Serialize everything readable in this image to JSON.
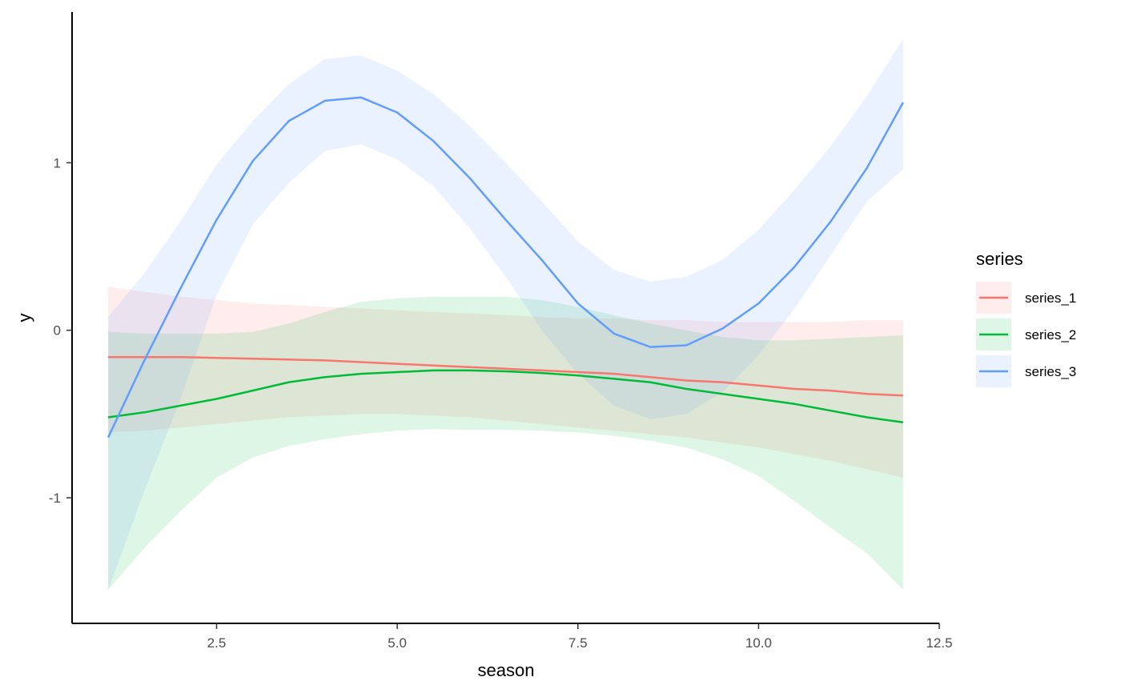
{
  "chart_data": {
    "type": "line",
    "title": "",
    "xlabel": "season",
    "ylabel": "y",
    "xlim": [
      0.5,
      12.5
    ],
    "ylim": [
      -1.75,
      1.9
    ],
    "x_ticks": [
      2.5,
      5.0,
      7.5,
      10.0,
      12.5
    ],
    "x_tick_labels": [
      "2.5",
      "5.0",
      "7.5",
      "10.0",
      "12.5"
    ],
    "y_ticks": [
      1,
      0,
      -1
    ],
    "y_tick_labels": [
      "1",
      "0",
      "-1"
    ],
    "grid": false,
    "legend": {
      "title": "series",
      "position": "right"
    },
    "x": [
      1,
      1.5,
      2,
      2.5,
      3,
      3.5,
      4,
      4.5,
      5,
      5.5,
      6,
      6.5,
      7,
      7.5,
      8,
      8.5,
      9,
      9.5,
      10,
      10.5,
      11,
      11.5,
      12
    ],
    "series": [
      {
        "name": "series_1",
        "color": "#F8766D",
        "fill": "#F8766D",
        "values": [
          -0.16,
          -0.16,
          -0.16,
          -0.165,
          -0.17,
          -0.175,
          -0.18,
          -0.19,
          -0.2,
          -0.21,
          -0.22,
          -0.23,
          -0.24,
          -0.25,
          -0.26,
          -0.28,
          -0.3,
          -0.31,
          -0.33,
          -0.35,
          -0.36,
          -0.38,
          -0.39
        ],
        "lower": [
          -0.61,
          -0.6,
          -0.58,
          -0.56,
          -0.54,
          -0.52,
          -0.51,
          -0.5,
          -0.5,
          -0.51,
          -0.52,
          -0.54,
          -0.56,
          -0.58,
          -0.6,
          -0.62,
          -0.64,
          -0.67,
          -0.7,
          -0.74,
          -0.78,
          -0.83,
          -0.88
        ],
        "upper": [
          0.26,
          0.23,
          0.2,
          0.18,
          0.16,
          0.15,
          0.14,
          0.13,
          0.12,
          0.11,
          0.1,
          0.09,
          0.08,
          0.07,
          0.07,
          0.06,
          0.06,
          0.05,
          0.05,
          0.05,
          0.05,
          0.06,
          0.06
        ]
      },
      {
        "name": "series_2",
        "color": "#00BA38",
        "fill": "#00BA38",
        "values": [
          -0.52,
          -0.49,
          -0.45,
          -0.41,
          -0.36,
          -0.31,
          -0.28,
          -0.26,
          -0.25,
          -0.24,
          -0.24,
          -0.245,
          -0.255,
          -0.27,
          -0.29,
          -0.31,
          -0.35,
          -0.38,
          -0.41,
          -0.44,
          -0.48,
          -0.52,
          -0.55
        ],
        "lower": [
          -1.55,
          -1.3,
          -1.08,
          -0.88,
          -0.76,
          -0.69,
          -0.65,
          -0.62,
          -0.6,
          -0.59,
          -0.595,
          -0.595,
          -0.6,
          -0.61,
          -0.63,
          -0.66,
          -0.7,
          -0.77,
          -0.87,
          -1.02,
          -1.18,
          -1.33,
          -1.55
        ],
        "upper": [
          -0.01,
          -0.02,
          -0.02,
          -0.02,
          -0.01,
          0.04,
          0.11,
          0.17,
          0.19,
          0.2,
          0.2,
          0.2,
          0.18,
          0.14,
          0.09,
          0.04,
          0.0,
          -0.04,
          -0.06,
          -0.06,
          -0.05,
          -0.04,
          -0.03
        ]
      },
      {
        "name": "series_3",
        "color": "#619CFF",
        "fill": "#619CFF",
        "values": [
          -0.64,
          -0.18,
          0.25,
          0.66,
          1.01,
          1.25,
          1.37,
          1.39,
          1.3,
          1.13,
          0.91,
          0.66,
          0.42,
          0.16,
          -0.02,
          -0.1,
          -0.09,
          0.01,
          0.16,
          0.38,
          0.65,
          0.97,
          1.36
        ],
        "lower": [
          -1.55,
          -0.96,
          -0.41,
          0.21,
          0.63,
          0.88,
          1.07,
          1.11,
          1.02,
          0.86,
          0.61,
          0.32,
          0.0,
          -0.26,
          -0.45,
          -0.53,
          -0.5,
          -0.37,
          -0.15,
          0.13,
          0.45,
          0.77,
          0.96
        ],
        "upper": [
          0.08,
          0.34,
          0.65,
          0.99,
          1.25,
          1.47,
          1.62,
          1.64,
          1.55,
          1.41,
          1.22,
          1.0,
          0.77,
          0.53,
          0.36,
          0.29,
          0.32,
          0.42,
          0.6,
          0.84,
          1.1,
          1.4,
          1.74
        ]
      }
    ]
  }
}
